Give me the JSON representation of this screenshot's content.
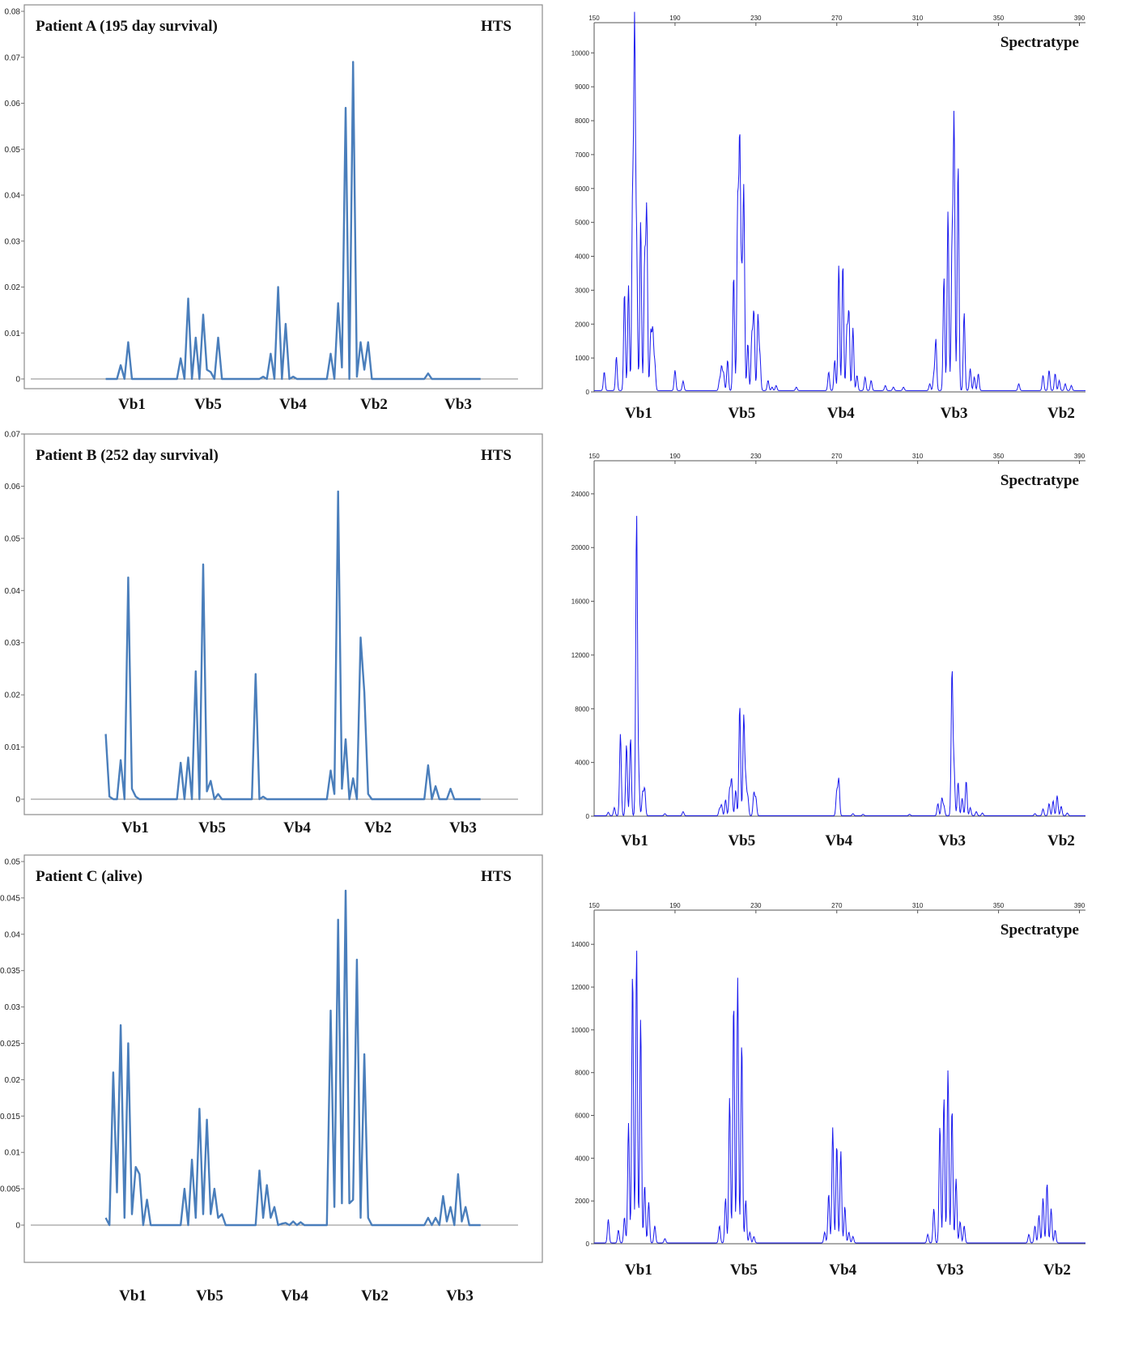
{
  "colors": {
    "hts_line": "#4A7EBB",
    "spectra_line": "#1a1aee",
    "frame": "#8c8c8c"
  },
  "chart_data": [
    {
      "id": "hts-a",
      "type": "line",
      "title": "Patient A (195 day survival)",
      "tag": "HTS",
      "ylim": [
        0,
        0.08
      ],
      "yticks": [
        "0",
        "0.01",
        "0.02",
        "0.03",
        "0.04",
        "0.05",
        "0.06",
        "0.07",
        "0.08"
      ],
      "categories": [
        "Vb1",
        "Vb5",
        "Vb4",
        "Vb2",
        "Vb3"
      ],
      "x": [
        0,
        1,
        2,
        3,
        4,
        5,
        6,
        7,
        8,
        9,
        10,
        11,
        12,
        13,
        14,
        15,
        16,
        17,
        18,
        19,
        20,
        21,
        22,
        23,
        24,
        25,
        26,
        27,
        28,
        29,
        30,
        31,
        32,
        33,
        34,
        35,
        36,
        37,
        38,
        39,
        40,
        41,
        42,
        43,
        44,
        45,
        46,
        47,
        48,
        49,
        50,
        51,
        52,
        53,
        54,
        55,
        56,
        57,
        58,
        59,
        60,
        61,
        62,
        63,
        64,
        65,
        66,
        67,
        68,
        69,
        70,
        71,
        72,
        73,
        74,
        75,
        76,
        77,
        78,
        79,
        80,
        81,
        82,
        83,
        84,
        85,
        86,
        87,
        88,
        89,
        90,
        91,
        92,
        93,
        94,
        95,
        96,
        97,
        98,
        99,
        100
      ],
      "values": [
        0,
        0,
        0,
        0,
        0.003,
        0,
        0.008,
        0,
        0,
        0,
        0,
        0,
        0,
        0,
        0,
        0,
        0,
        0,
        0,
        0,
        0.0045,
        0,
        0.0175,
        0,
        0.009,
        0,
        0.014,
        0.002,
        0.0015,
        0,
        0.009,
        0,
        0,
        0,
        0,
        0,
        0,
        0,
        0,
        0,
        0,
        0,
        0.0005,
        0,
        0.0055,
        0,
        0.02,
        0,
        0.012,
        0,
        0.0005,
        0,
        0,
        0,
        0,
        0,
        0,
        0,
        0,
        0,
        0.0055,
        0,
        0.0165,
        0.0025,
        0.059,
        0,
        0.069,
        0.0005,
        0.008,
        0.002,
        0.008,
        0,
        0,
        0,
        0,
        0,
        0,
        0,
        0,
        0,
        0,
        0,
        0,
        0,
        0,
        0,
        0.0012,
        0,
        0,
        0,
        0,
        0,
        0,
        0,
        0,
        0,
        0,
        0,
        0,
        0,
        0
      ],
      "xrange": [
        -20,
        110
      ]
    },
    {
      "id": "hts-b",
      "type": "line",
      "title": "Patient B (252 day survival)",
      "tag": "HTS",
      "ylim": [
        0,
        0.07
      ],
      "yticks": [
        "0",
        "0.01",
        "0.02",
        "0.03",
        "0.04",
        "0.05",
        "0.06",
        "0.07"
      ],
      "categories": [
        "Vb1",
        "Vb5",
        "Vb4",
        "Vb2",
        "Vb3"
      ],
      "x": [
        0,
        1,
        2,
        3,
        4,
        5,
        6,
        7,
        8,
        9,
        10,
        11,
        12,
        13,
        14,
        15,
        16,
        17,
        18,
        19,
        20,
        21,
        22,
        23,
        24,
        25,
        26,
        27,
        28,
        29,
        30,
        31,
        32,
        33,
        34,
        35,
        36,
        37,
        38,
        39,
        40,
        41,
        42,
        43,
        44,
        45,
        46,
        47,
        48,
        49,
        50,
        51,
        52,
        53,
        54,
        55,
        56,
        57,
        58,
        59,
        60,
        61,
        62,
        63,
        64,
        65,
        66,
        67,
        68,
        69,
        70,
        71,
        72,
        73,
        74,
        75,
        76,
        77,
        78,
        79,
        80,
        81,
        82,
        83,
        84,
        85,
        86,
        87,
        88,
        89,
        90,
        91,
        92,
        93,
        94,
        95,
        96,
        97,
        98,
        99,
        100
      ],
      "values": [
        0.0125,
        0.0005,
        0,
        0,
        0.0075,
        0,
        0.0425,
        0.002,
        0.0005,
        0,
        0,
        0,
        0,
        0,
        0,
        0,
        0,
        0,
        0,
        0,
        0.007,
        0,
        0.008,
        0,
        0.0245,
        0,
        0.045,
        0.0015,
        0.0035,
        0,
        0.001,
        0,
        0,
        0,
        0,
        0,
        0,
        0,
        0,
        0,
        0.024,
        0,
        0.0005,
        0,
        0,
        0,
        0,
        0,
        0,
        0,
        0,
        0,
        0,
        0,
        0,
        0,
        0,
        0,
        0,
        0,
        0.0055,
        0.001,
        0.059,
        0.002,
        0.0115,
        0,
        0.004,
        0,
        0.031,
        0.0205,
        0.001,
        0,
        0,
        0,
        0,
        0,
        0,
        0,
        0,
        0,
        0,
        0,
        0,
        0,
        0,
        0,
        0.0065,
        0,
        0.0025,
        0,
        0,
        0,
        0.002,
        0,
        0,
        0,
        0,
        0,
        0,
        0,
        0
      ],
      "xrange": [
        -20,
        110
      ]
    },
    {
      "id": "hts-c",
      "type": "line",
      "title": "Patient C (alive)",
      "tag": "HTS",
      "ylim": [
        0,
        0.05
      ],
      "yticks": [
        "0",
        "0.005",
        "0.01",
        "0.015",
        "0.02",
        "0.025",
        "0.03",
        "0.035",
        "0.04",
        "0.045",
        "0.05"
      ],
      "categories": [
        "Vb1",
        "Vb5",
        "Vb4",
        "Vb2",
        "Vb3"
      ],
      "x": [
        0,
        1,
        2,
        3,
        4,
        5,
        6,
        7,
        8,
        9,
        10,
        11,
        12,
        13,
        14,
        15,
        16,
        17,
        18,
        19,
        20,
        21,
        22,
        23,
        24,
        25,
        26,
        27,
        28,
        29,
        30,
        31,
        32,
        33,
        34,
        35,
        36,
        37,
        38,
        39,
        40,
        41,
        42,
        43,
        44,
        45,
        46,
        47,
        48,
        49,
        50,
        51,
        52,
        53,
        54,
        55,
        56,
        57,
        58,
        59,
        60,
        61,
        62,
        63,
        64,
        65,
        66,
        67,
        68,
        69,
        70,
        71,
        72,
        73,
        74,
        75,
        76,
        77,
        78,
        79,
        80,
        81,
        82,
        83,
        84,
        85,
        86,
        87,
        88,
        89,
        90,
        91,
        92,
        93,
        94,
        95,
        96,
        97,
        98,
        99,
        100
      ],
      "values": [
        0.001,
        0,
        0.021,
        0.0045,
        0.0275,
        0.001,
        0.025,
        0.0015,
        0.008,
        0.007,
        0,
        0.0035,
        0,
        0,
        0,
        0,
        0,
        0,
        0,
        0,
        0,
        0.005,
        0,
        0.009,
        0.001,
        0.016,
        0.0015,
        0.0145,
        0.0015,
        0.005,
        0.001,
        0.0015,
        0,
        0,
        0,
        0,
        0,
        0,
        0,
        0,
        0,
        0.0075,
        0.001,
        0.0055,
        0.001,
        0.0025,
        0,
        0.0002,
        0.0003,
        0,
        0.0005,
        0,
        0.0004,
        0,
        0,
        0,
        0,
        0,
        0,
        0,
        0.0295,
        0.0025,
        0.042,
        0.003,
        0.046,
        0.003,
        0.0035,
        0.0365,
        0.001,
        0.0235,
        0.001,
        0,
        0,
        0,
        0,
        0,
        0,
        0,
        0,
        0,
        0,
        0,
        0,
        0,
        0,
        0,
        0.001,
        0,
        0.001,
        0,
        0.004,
        0.0005,
        0.0025,
        0,
        0.007,
        0.0005,
        0.0025,
        0,
        0,
        0,
        0
      ],
      "xrange": [
        -20,
        110
      ]
    },
    {
      "id": "spec-a",
      "type": "line",
      "tag": "Spectratype",
      "xticks": [
        "150",
        "190",
        "230",
        "270",
        "310",
        "350",
        "390"
      ],
      "ylim": [
        0,
        10700
      ],
      "yticks": [
        "0",
        "1000",
        "2000",
        "3000",
        "4000",
        "5000",
        "6000",
        "7000",
        "8000",
        "9000",
        "10000"
      ],
      "categories": [
        "Vb1",
        "Vb5",
        "Vb4",
        "Vb3",
        "Vb2"
      ],
      "cat_x": [
        172,
        223,
        272,
        328,
        381
      ],
      "xrange": [
        150,
        393
      ],
      "peaks": [
        [
          155,
          550
        ],
        [
          161,
          1000
        ],
        [
          165,
          2900
        ],
        [
          167,
          3100
        ],
        [
          169,
          5500
        ],
        [
          170,
          10600
        ],
        [
          171,
          4200
        ],
        [
          173,
          5000
        ],
        [
          175,
          3800
        ],
        [
          176,
          5300
        ],
        [
          178,
          1700
        ],
        [
          179,
          1750
        ],
        [
          180,
          800
        ],
        [
          190,
          600
        ],
        [
          194,
          280
        ],
        [
          212,
          300
        ],
        [
          213,
          700
        ],
        [
          214,
          500
        ],
        [
          216,
          900
        ],
        [
          219,
          3400
        ],
        [
          221,
          5400
        ],
        [
          222,
          7250
        ],
        [
          223,
          3000
        ],
        [
          224,
          5900
        ],
        [
          226,
          1400
        ],
        [
          228,
          1600
        ],
        [
          229,
          2300
        ],
        [
          231,
          2200
        ],
        [
          232,
          1000
        ],
        [
          236,
          300
        ],
        [
          238,
          100
        ],
        [
          240,
          150
        ],
        [
          250,
          100
        ],
        [
          266,
          550
        ],
        [
          269,
          900
        ],
        [
          271,
          3700
        ],
        [
          273,
          3750
        ],
        [
          275,
          1800
        ],
        [
          276,
          2300
        ],
        [
          278,
          1850
        ],
        [
          280,
          450
        ],
        [
          284,
          400
        ],
        [
          287,
          300
        ],
        [
          294,
          150
        ],
        [
          298,
          100
        ],
        [
          303,
          100
        ],
        [
          316,
          200
        ],
        [
          318,
          450
        ],
        [
          319,
          1500
        ],
        [
          323,
          3350
        ],
        [
          325,
          5300
        ],
        [
          327,
          4200
        ],
        [
          328,
          8000
        ],
        [
          330,
          6700
        ],
        [
          333,
          2300
        ],
        [
          336,
          650
        ],
        [
          338,
          400
        ],
        [
          340,
          500
        ],
        [
          360,
          200
        ],
        [
          372,
          450
        ],
        [
          375,
          600
        ],
        [
          378,
          500
        ],
        [
          380,
          300
        ],
        [
          383,
          200
        ],
        [
          386,
          150
        ]
      ]
    },
    {
      "id": "spec-b",
      "type": "line",
      "tag": "Spectratype",
      "xticks": [
        "150",
        "190",
        "230",
        "270",
        "310",
        "350",
        "390"
      ],
      "ylim": [
        0,
        25500
      ],
      "yticks": [
        "0",
        "4000",
        "8000",
        "12000",
        "16000",
        "20000",
        "24000"
      ],
      "categories": [
        "Vb1",
        "Vb5",
        "Vb4",
        "Vb3",
        "Vb2"
      ],
      "cat_x": [
        170,
        223,
        271,
        327,
        381
      ],
      "xrange": [
        150,
        393
      ],
      "peaks": [
        [
          157,
          250
        ],
        [
          160,
          600
        ],
        [
          163,
          6100
        ],
        [
          166,
          5300
        ],
        [
          168,
          5800
        ],
        [
          171,
          22300
        ],
        [
          172,
          3000
        ],
        [
          174,
          1700
        ],
        [
          175,
          2000
        ],
        [
          185,
          150
        ],
        [
          194,
          300
        ],
        [
          212,
          500
        ],
        [
          213,
          800
        ],
        [
          215,
          1200
        ],
        [
          217,
          1900
        ],
        [
          218,
          2700
        ],
        [
          220,
          1900
        ],
        [
          222,
          8200
        ],
        [
          224,
          7400
        ],
        [
          225,
          2500
        ],
        [
          226,
          1400
        ],
        [
          229,
          1700
        ],
        [
          230,
          1300
        ],
        [
          270,
          1800
        ],
        [
          271,
          2700
        ],
        [
          278,
          150
        ],
        [
          283,
          100
        ],
        [
          306,
          100
        ],
        [
          320,
          900
        ],
        [
          322,
          1300
        ],
        [
          323,
          700
        ],
        [
          327,
          10800
        ],
        [
          328,
          3400
        ],
        [
          330,
          2500
        ],
        [
          332,
          1300
        ],
        [
          334,
          2600
        ],
        [
          336,
          600
        ],
        [
          339,
          300
        ],
        [
          342,
          200
        ],
        [
          368,
          150
        ],
        [
          372,
          500
        ],
        [
          375,
          900
        ],
        [
          377,
          1100
        ],
        [
          379,
          1500
        ],
        [
          381,
          700
        ],
        [
          384,
          200
        ]
      ]
    },
    {
      "id": "spec-c",
      "type": "line",
      "tag": "Spectratype",
      "xticks": [
        "150",
        "190",
        "230",
        "270",
        "310",
        "350",
        "390"
      ],
      "ylim": [
        0,
        14500
      ],
      "yticks": [
        "0",
        "2000",
        "4000",
        "6000",
        "8000",
        "10000",
        "12000",
        "14000"
      ],
      "categories": [
        "Vb1",
        "Vb5",
        "Vb4",
        "Vb3",
        "Vb2"
      ],
      "cat_x": [
        172,
        224,
        273,
        326,
        379
      ],
      "xrange": [
        150,
        393
      ],
      "peaks": [
        [
          157,
          1100
        ],
        [
          162,
          600
        ],
        [
          165,
          1200
        ],
        [
          167,
          5600
        ],
        [
          169,
          12700
        ],
        [
          171,
          13800
        ],
        [
          173,
          10500
        ],
        [
          175,
          2700
        ],
        [
          177,
          1900
        ],
        [
          180,
          800
        ],
        [
          185,
          200
        ],
        [
          212,
          800
        ],
        [
          215,
          2100
        ],
        [
          217,
          6800
        ],
        [
          219,
          11300
        ],
        [
          221,
          12400
        ],
        [
          223,
          9400
        ],
        [
          225,
          2000
        ],
        [
          227,
          500
        ],
        [
          229,
          300
        ],
        [
          264,
          500
        ],
        [
          266,
          2300
        ],
        [
          268,
          5400
        ],
        [
          270,
          4600
        ],
        [
          272,
          4300
        ],
        [
          274,
          1700
        ],
        [
          276,
          500
        ],
        [
          278,
          300
        ],
        [
          315,
          400
        ],
        [
          318,
          1600
        ],
        [
          321,
          5500
        ],
        [
          323,
          6800
        ],
        [
          325,
          8100
        ],
        [
          327,
          6300
        ],
        [
          329,
          3000
        ],
        [
          331,
          1000
        ],
        [
          333,
          800
        ],
        [
          365,
          400
        ],
        [
          368,
          800
        ],
        [
          370,
          1300
        ],
        [
          372,
          2100
        ],
        [
          374,
          2800
        ],
        [
          376,
          1600
        ],
        [
          378,
          600
        ]
      ]
    }
  ]
}
